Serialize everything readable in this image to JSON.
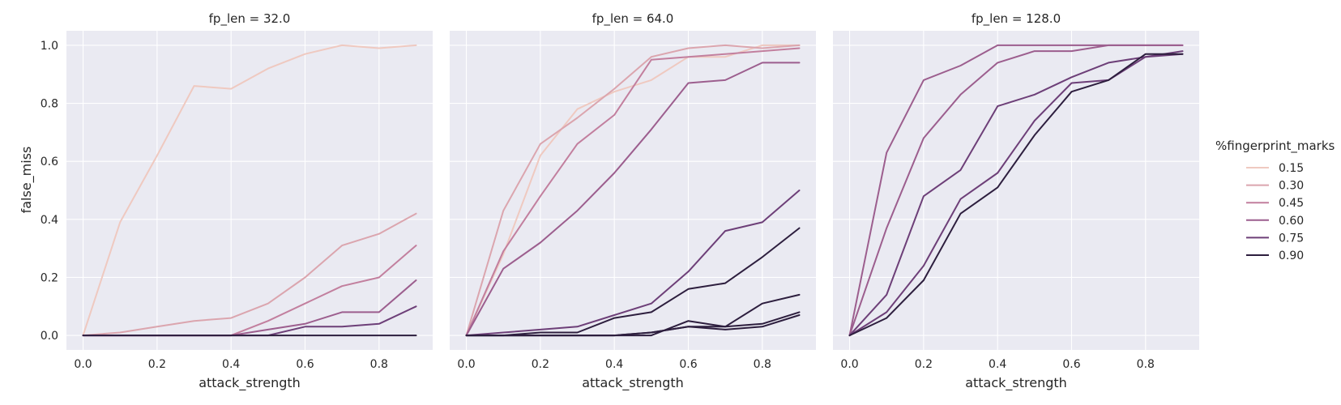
{
  "chart_data": {
    "type": "line",
    "ylabel": "false_miss",
    "xlabel": "attack_strength",
    "xlim": [
      -0.045,
      0.945
    ],
    "ylim": [
      -0.05,
      1.05
    ],
    "xticks": [
      "0.0",
      "0.2",
      "0.4",
      "0.6",
      "0.8"
    ],
    "yticks": [
      "0.0",
      "0.2",
      "0.4",
      "0.6",
      "0.8",
      "1.0"
    ],
    "grid": true,
    "legend": {
      "title": "%fingerprint_marks",
      "placement": "right",
      "entries": [
        "0.15",
        "0.30",
        "0.45",
        "0.60",
        "0.75",
        "0.90"
      ],
      "colors": [
        "#efc9c0",
        "#dba5ae",
        "#c27f9e",
        "#9c5e8e",
        "#6d3f78",
        "#2d1e3e"
      ]
    },
    "x": [
      0.0,
      0.1,
      0.2,
      0.3,
      0.4,
      0.5,
      0.6,
      0.7,
      0.8,
      0.9
    ],
    "panels": [
      {
        "title": "fp_len = 32.0",
        "series": [
          {
            "name": "0.15",
            "values": [
              0.0,
              0.39,
              0.62,
              0.86,
              0.85,
              0.92,
              0.97,
              1.0,
              0.99,
              1.0
            ]
          },
          {
            "name": "0.30",
            "values": [
              0.0,
              0.01,
              0.03,
              0.05,
              0.06,
              0.11,
              0.2,
              0.31,
              0.35,
              0.42
            ]
          },
          {
            "name": "0.45",
            "values": [
              0.0,
              0.0,
              0.0,
              0.0,
              0.0,
              0.05,
              0.11,
              0.17,
              0.2,
              0.31
            ]
          },
          {
            "name": "0.60",
            "values": [
              0.0,
              0.0,
              0.0,
              0.0,
              0.0,
              0.02,
              0.04,
              0.08,
              0.08,
              0.19
            ]
          },
          {
            "name": "0.75",
            "values": [
              0.0,
              0.0,
              0.0,
              0.0,
              0.0,
              0.0,
              0.03,
              0.03,
              0.04,
              0.1
            ]
          },
          {
            "name": "0.90",
            "values": [
              0.0,
              0.0,
              0.0,
              0.0,
              0.0,
              0.0,
              0.0,
              0.0,
              0.0,
              0.0
            ]
          }
        ]
      },
      {
        "title": "fp_len = 64.0",
        "series": [
          {
            "name": "0.15",
            "values": [
              0.0,
              0.28,
              0.62,
              0.78,
              0.84,
              0.88,
              0.96,
              0.96,
              1.0,
              1.0
            ]
          },
          {
            "name": "0.30",
            "values": [
              0.0,
              0.43,
              0.66,
              0.75,
              0.85,
              0.96,
              0.99,
              1.0,
              0.99,
              1.0
            ]
          },
          {
            "name": "0.45",
            "values": [
              0.0,
              0.29,
              0.48,
              0.66,
              0.76,
              0.95,
              0.96,
              0.97,
              0.98,
              0.99
            ]
          },
          {
            "name": "0.60",
            "values": [
              0.0,
              0.23,
              0.32,
              0.43,
              0.56,
              0.71,
              0.87,
              0.88,
              0.94,
              0.94
            ]
          },
          {
            "name": "0.75",
            "values": [
              0.0,
              0.01,
              0.02,
              0.03,
              0.07,
              0.11,
              0.22,
              0.36,
              0.39,
              0.5
            ]
          },
          {
            "name": "0.90",
            "values": [
              0.0,
              0.0,
              0.01,
              0.01,
              0.06,
              0.08,
              0.16,
              0.18,
              0.27,
              0.37
            ]
          },
          {
            "name": "0.90",
            "values": [
              0.0,
              0.0,
              0.0,
              0.0,
              0.0,
              0.01,
              0.03,
              0.03,
              0.11,
              0.14
            ]
          },
          {
            "name": "0.90",
            "values": [
              0.0,
              0.0,
              0.0,
              0.0,
              0.0,
              0.0,
              0.05,
              0.03,
              0.04,
              0.08
            ]
          },
          {
            "name": "0.90",
            "values": [
              0.0,
              0.0,
              0.0,
              0.0,
              0.0,
              0.01,
              0.03,
              0.02,
              0.03,
              0.07
            ]
          }
        ]
      },
      {
        "title": "fp_len = 128.0",
        "series": [
          {
            "name": "0.60",
            "values": [
              0.0,
              0.63,
              0.88,
              0.93,
              1.0,
              1.0,
              1.0,
              1.0,
              1.0,
              1.0
            ]
          },
          {
            "name": "0.60",
            "values": [
              0.0,
              0.37,
              0.68,
              0.83,
              0.94,
              0.98,
              0.98,
              1.0,
              1.0,
              1.0
            ]
          },
          {
            "name": "0.75",
            "values": [
              0.0,
              0.14,
              0.48,
              0.57,
              0.79,
              0.83,
              0.89,
              0.94,
              0.96,
              0.97
            ]
          },
          {
            "name": "0.75",
            "values": [
              0.0,
              0.08,
              0.24,
              0.47,
              0.56,
              0.74,
              0.87,
              0.88,
              0.96,
              0.98
            ]
          },
          {
            "name": "0.90",
            "values": [
              0.0,
              0.06,
              0.19,
              0.42,
              0.51,
              0.69,
              0.84,
              0.88,
              0.97,
              0.97
            ]
          }
        ]
      }
    ]
  }
}
